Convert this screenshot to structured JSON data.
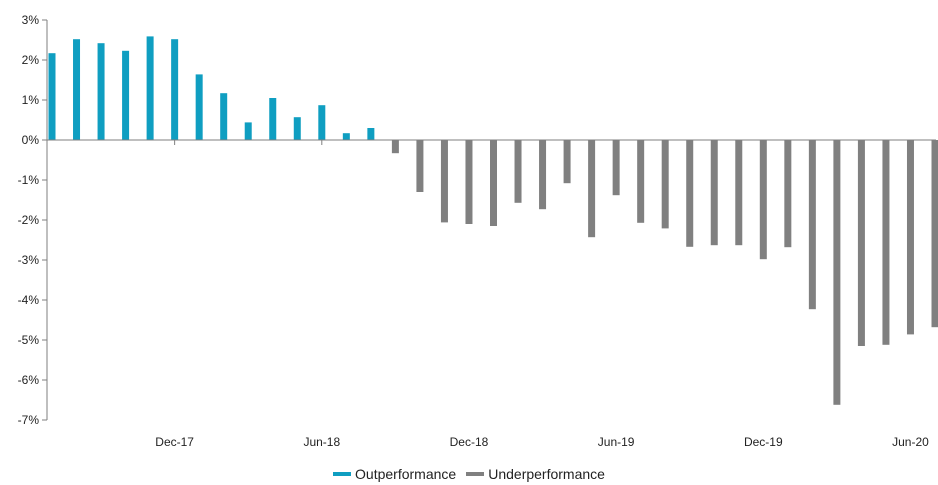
{
  "chart_data": {
    "type": "bar",
    "title": "",
    "xlabel": "",
    "ylabel": "",
    "ylim": [
      -7,
      3
    ],
    "y_ticks": [
      "3%",
      "2%",
      "1%",
      "0%",
      "-1%",
      "-2%",
      "-3%",
      "-4%",
      "-5%",
      "-6%",
      "-7%"
    ],
    "x_tick_labels": [
      "Dec-17",
      "Jun-18",
      "Dec-18",
      "Jun-19",
      "Dec-19",
      "Jun-20"
    ],
    "grid": false,
    "legend_position": "bottom",
    "colors": {
      "outperformance": "#0f9ec1",
      "underperformance": "#808080",
      "axis": "#7f7f7f"
    },
    "series": [
      {
        "name": "Outperformance",
        "color": "#0f9ec1"
      },
      {
        "name": "Underperformance",
        "color": "#808080"
      }
    ],
    "values": [
      2.17,
      2.52,
      2.42,
      2.23,
      2.59,
      2.52,
      1.64,
      1.17,
      0.44,
      1.05,
      0.57,
      0.87,
      0.17,
      0.3,
      -0.33,
      -1.3,
      -2.06,
      -2.1,
      -2.15,
      -1.57,
      -1.73,
      -1.08,
      -2.43,
      -1.38,
      -2.07,
      -2.21,
      -2.67,
      -2.63,
      -2.63,
      -2.98,
      -2.68,
      -4.23,
      -6.62,
      -5.15,
      -5.12,
      -4.86,
      -4.68
    ]
  }
}
